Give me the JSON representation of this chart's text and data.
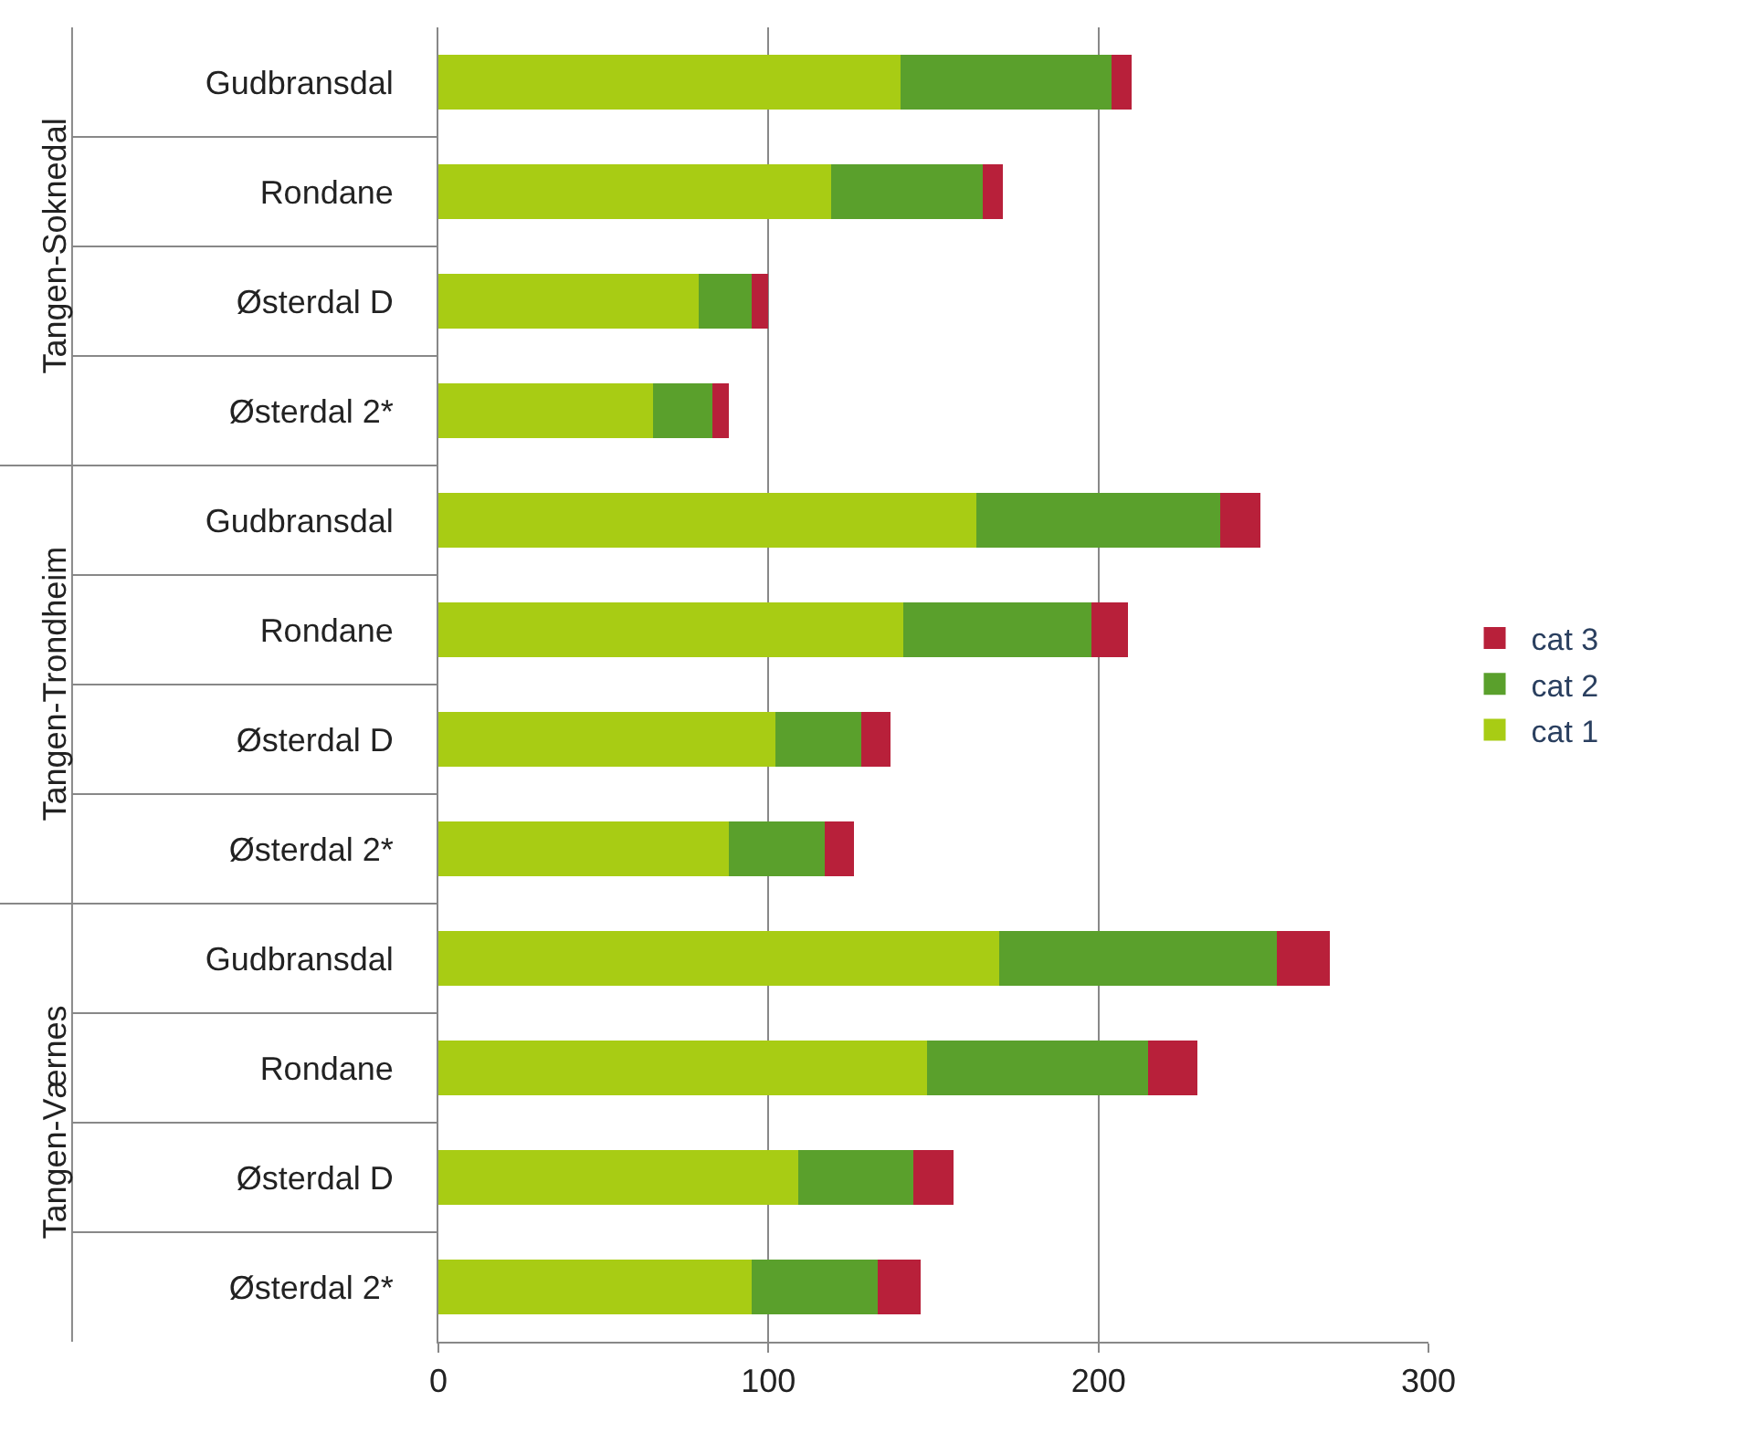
{
  "chart_data": {
    "type": "bar",
    "orientation": "horizontal",
    "stacked": true,
    "categories": [
      "Gudbransdal",
      "Rondane",
      "Østerdal D",
      "Østerdal 2*",
      "Gudbransdal",
      "Rondane",
      "Østerdal D",
      "Østerdal 2*",
      "Gudbransdal",
      "Rondane",
      "Østerdal D",
      "Østerdal 2*"
    ],
    "annotations": [
      "Tangen-Soknedal",
      "Tangen-Trondheim",
      "Tangen-Værnes"
    ],
    "series": [
      {
        "name": "cat 1",
        "color": "#a8cc14",
        "values": [
          140,
          119,
          79,
          65,
          163,
          141,
          102,
          88,
          170,
          148,
          109,
          95
        ]
      },
      {
        "name": "cat 2",
        "color": "#5aa02c",
        "values": [
          64,
          46,
          16,
          18,
          74,
          57,
          26,
          29,
          84,
          67,
          35,
          38
        ]
      },
      {
        "name": "cat 3",
        "color": "#b8203a",
        "values": [
          6,
          6,
          5,
          5,
          12,
          11,
          9,
          9,
          16,
          15,
          12,
          13
        ]
      }
    ],
    "xlim": [
      0,
      300
    ],
    "xticks": [
      0,
      100,
      200,
      300
    ],
    "grid": "x",
    "legend": "right"
  }
}
